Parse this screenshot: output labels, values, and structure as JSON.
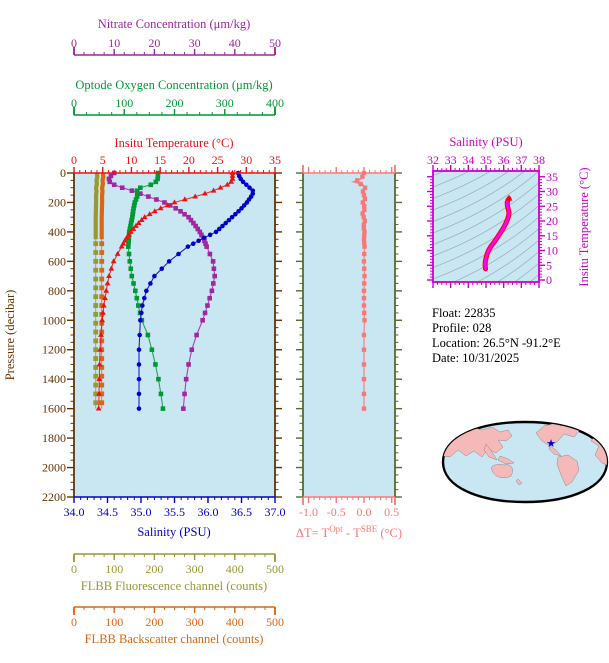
{
  "colors": {
    "panel_bg": "#C9E7F2",
    "pressure_axis": "#663300",
    "temperature": "#EE1111",
    "salinity": "#0000CC",
    "oxygen": "#009933",
    "nitrate": "#A126A1",
    "fluorescence": "#999933",
    "backscatter": "#DD6611",
    "delta_t": "#F87878",
    "delta_border": "#556B2F",
    "ts_magenta": "#CC00CC",
    "ts_curve_outer": "#FF0000",
    "ts_curve_inner": "#FF00FF",
    "contour_gray": "#9FB0BC",
    "map_land": "#F5B9B9",
    "map_ocean": "#C9E7F2",
    "map_outline": "#000000",
    "star_blue": "#0000DD",
    "text_black": "#000000"
  },
  "info": {
    "lines": [
      "Float:  22835",
      "Profile:  028",
      "Location:  26.5°N  -91.2°E",
      "Date:  10/31/2025"
    ]
  },
  "chart_data": [
    {
      "id": "profile-panel",
      "type": "line",
      "title": "",
      "grid": false,
      "y_axis": {
        "label": "Pressure (decibar)",
        "range": [
          0,
          2200
        ],
        "tick_labels": [
          "0",
          "200",
          "400",
          "600",
          "800",
          "1000",
          "1200",
          "1400",
          "1600",
          "1800",
          "2000",
          "2200"
        ],
        "minor_step": 50,
        "inverted": true,
        "color": "#663300"
      },
      "x_axes": {
        "nitrate": {
          "label": "Nitrate Concentration (μm/kg)",
          "range": [
            0,
            50
          ],
          "tick_labels": [
            "0",
            "10",
            "20",
            "30",
            "40",
            "50"
          ],
          "minor_step": 2.5,
          "color": "#A126A1"
        },
        "oxygen": {
          "label": "Optode Oxygen Concentration (μm/kg)",
          "range": [
            0,
            400
          ],
          "tick_labels": [
            "0",
            "100",
            "200",
            "300",
            "400"
          ],
          "minor_step": 25,
          "color": "#009933"
        },
        "temperature": {
          "label": "Insitu Temperature (°C)",
          "range": [
            0,
            35
          ],
          "tick_labels": [
            "0",
            "5",
            "10",
            "15",
            "20",
            "25",
            "30",
            "35"
          ],
          "minor_step": 1,
          "color": "#EE1111"
        },
        "salinity": {
          "label": "Salinity (PSU)",
          "range": [
            34,
            37
          ],
          "tick_labels": [
            "34.0",
            "34.5",
            "35.0",
            "35.5",
            "36.0",
            "36.5",
            "37.0"
          ],
          "minor_step": 0.1,
          "color": "#0000CC"
        },
        "fluorescence": {
          "label": "FLBB Fluorescence channel (counts)",
          "range": [
            0,
            500
          ],
          "tick_labels": [
            "0",
            "100",
            "200",
            "300",
            "400",
            "500"
          ],
          "minor_step": 25,
          "color": "#999933"
        },
        "backscatter": {
          "label": "FLBB Backscatter channel (counts)",
          "range": [
            0,
            500
          ],
          "tick_labels": [
            "0",
            "100",
            "200",
            "300",
            "400",
            "500"
          ],
          "minor_step": 25,
          "color": "#DD6611"
        }
      },
      "pressure": [
        0,
        25,
        50,
        75,
        100,
        125,
        150,
        200,
        250,
        300,
        350,
        400,
        450,
        500,
        600,
        700,
        800,
        900,
        1000,
        1100,
        1200,
        1300,
        1400,
        1500,
        1600
      ],
      "series": [
        {
          "name": "FLBB Fluorescence channel",
          "axis": "fluorescence",
          "marker": "square",
          "style": "thick-then-dotted",
          "values": [
            57,
            58,
            56,
            57,
            55,
            56,
            55,
            55,
            54.5,
            54,
            54,
            54,
            54,
            54,
            54,
            54,
            54,
            54,
            54,
            54,
            54,
            54,
            54,
            54,
            54
          ]
        },
        {
          "name": "FLBB Backscatter channel",
          "axis": "backscatter",
          "marker": "square",
          "style": "thick-then-dotted",
          "values": [
            72,
            73,
            71,
            72,
            70,
            71,
            70,
            70,
            69.5,
            69,
            69,
            69,
            69,
            69,
            69,
            69,
            69,
            69,
            69,
            69,
            69,
            69,
            69,
            69,
            69
          ]
        },
        {
          "name": "Nitrate Concentration",
          "axis": "nitrate",
          "marker": "square",
          "values": [
            10,
            9,
            8.5,
            9.5,
            12,
            15,
            17.5,
            22.5,
            26,
            28.5,
            30,
            31.3,
            32.3,
            33,
            34.6,
            35,
            34.3,
            33.2,
            32,
            30.5,
            29.3,
            28.5,
            27.9,
            27.5,
            27.2
          ]
        },
        {
          "name": "Optode Oxygen Concentration",
          "axis": "oxygen",
          "marker": "square",
          "values": [
            167,
            167,
            166,
            158,
            132,
            124,
            127,
            121,
            118,
            116,
            113,
            110,
            109,
            108,
            111,
            115,
            122,
            128,
            135,
            147,
            155,
            162,
            168,
            173,
            177
          ]
        },
        {
          "name": "Salinity",
          "axis": "salinity",
          "marker": "circle",
          "values": [
            36.45,
            36.47,
            36.5,
            36.56,
            36.62,
            36.68,
            36.66,
            36.58,
            36.48,
            36.36,
            36.24,
            36.12,
            35.9,
            35.7,
            35.42,
            35.2,
            35.08,
            35.02,
            34.99,
            34.98,
            34.97,
            34.97,
            34.97,
            34.97,
            34.97
          ]
        },
        {
          "name": "Insitu Temperature",
          "axis": "temperature",
          "marker": "triangle",
          "values": [
            27.6,
            27.6,
            27.6,
            27.0,
            25.5,
            24.0,
            22.0,
            17.5,
            14.5,
            12.3,
            11.0,
            9.9,
            9.0,
            8.3,
            6.9,
            6.1,
            5.6,
            5.2,
            4.9,
            4.7,
            4.55,
            4.45,
            4.4,
            4.35,
            4.3
          ]
        }
      ]
    },
    {
      "id": "delta-t-panel",
      "type": "line",
      "x_axis": {
        "label": "ΔT= Tᵒᵖᵗ - Tˢᵇᵉ (°C)",
        "label_parts": {
          "p1": "ΔT= T",
          "p2": "Opt",
          "p3": " - T",
          "p4": "SBE",
          "p5": " (°C)"
        },
        "range": [
          -1.1,
          0.56
        ],
        "tick_labels": [
          "-1.0",
          "-0.5",
          "0.0",
          "0.5"
        ],
        "minor_step": 0.1,
        "color": "#F87878",
        "border_color": "#556B2F"
      },
      "y_axis": {
        "label": "",
        "range": [
          0,
          2200
        ],
        "minor_step": 50,
        "inverted": true
      },
      "pressure": [
        0,
        20,
        40,
        50,
        60,
        70,
        80,
        100,
        120,
        140,
        160,
        180,
        200,
        240,
        280,
        320,
        360,
        400,
        450,
        500,
        600,
        700,
        800,
        900,
        1000,
        1100,
        1200,
        1300,
        1400,
        1500,
        1600
      ],
      "values": [
        0,
        -0.02,
        -0.05,
        -0.12,
        -0.2,
        -0.1,
        -0.02,
        0.02,
        -0.03,
        0.02,
        -0.02,
        0.03,
        -0.02,
        0.02,
        -0.03,
        0.02,
        -0.01,
        0.01,
        0,
        0.01,
        0,
        0.01,
        0,
        0,
        0.01,
        0,
        0,
        0,
        0,
        0,
        0
      ],
      "marker": "square"
    },
    {
      "id": "ts-panel",
      "type": "line",
      "x_axis": {
        "label": "Salinity (PSU)",
        "range": [
          32,
          38
        ],
        "tick_labels": [
          "32",
          "33",
          "34",
          "35",
          "36",
          "37",
          "38"
        ],
        "minor_step": 0.25,
        "color": "#CC00CC"
      },
      "y_axis": {
        "label": "Insitu Temperature (°C)",
        "range": [
          0,
          35
        ],
        "tick_labels": [
          "0",
          "5",
          "10",
          "15",
          "20",
          "25",
          "30",
          "35"
        ],
        "minor_step": 1,
        "color": "#CC00CC"
      },
      "isopycnal_contours": true,
      "salinity": [
        34.97,
        34.95,
        34.96,
        35.0,
        35.06,
        35.16,
        35.3,
        35.48,
        35.66,
        35.84,
        36.0,
        36.12,
        36.22,
        36.28,
        36.3,
        36.26,
        36.21,
        36.2,
        36.24,
        36.3
      ],
      "temperature": [
        3.8,
        5.0,
        6.2,
        7.5,
        8.8,
        10.2,
        11.6,
        13.0,
        14.6,
        16.2,
        17.8,
        19.2,
        20.6,
        21.8,
        22.8,
        24.0,
        25.2,
        26.2,
        27.0,
        27.6
      ]
    },
    {
      "id": "location-map",
      "type": "map",
      "projection": "global-oval-pacific-centered",
      "star": {
        "x": 551,
        "y": 443
      },
      "star_glyph": "★"
    }
  ]
}
